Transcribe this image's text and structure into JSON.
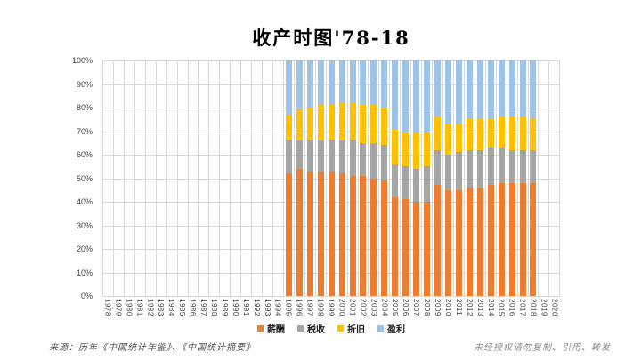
{
  "footer": {
    "source": "来源：历年《中国统计年鉴》、《中国统计摘要》",
    "notice": "未经授权请勿复制、引用、转发"
  },
  "chart_data": {
    "type": "bar",
    "subtype": "100-percent-stacked-column",
    "title": "收产时图'78-18",
    "categories": [
      "1978",
      "1979",
      "1980",
      "1981",
      "1982",
      "1983",
      "1984",
      "1985",
      "1986",
      "1987",
      "1988",
      "1989",
      "1990",
      "1991",
      "1992",
      "1993",
      "1994",
      "1995",
      "1996",
      "1997",
      "1998",
      "1999",
      "2000",
      "2001",
      "2002",
      "2003",
      "2004",
      "2005",
      "2006",
      "2007",
      "2008",
      "2009",
      "2010",
      "2011",
      "2012",
      "2013",
      "2014",
      "2015",
      "2016",
      "2017",
      "2018",
      "2019",
      "2020"
    ],
    "series": [
      {
        "name": "薪酬",
        "color": "#ED7D31",
        "values": [
          null,
          null,
          null,
          null,
          null,
          null,
          null,
          null,
          null,
          null,
          null,
          null,
          null,
          null,
          null,
          null,
          null,
          52,
          54,
          53,
          53,
          53,
          52,
          51,
          51,
          50,
          49,
          42,
          41,
          40,
          40,
          47,
          45,
          45,
          46,
          46,
          47,
          48,
          48,
          48,
          48,
          null,
          null
        ]
      },
      {
        "name": "税收",
        "color": "#A5A5A5",
        "values": [
          null,
          null,
          null,
          null,
          null,
          null,
          null,
          null,
          null,
          null,
          null,
          null,
          null,
          null,
          null,
          null,
          null,
          14,
          12,
          13,
          13,
          13,
          14,
          15,
          14,
          15,
          15,
          14,
          14,
          14,
          15,
          15,
          15,
          16,
          16,
          16,
          16,
          15,
          14,
          14,
          14,
          null,
          null
        ]
      },
      {
        "name": "折旧",
        "color": "#FFC000",
        "values": [
          null,
          null,
          null,
          null,
          null,
          null,
          null,
          null,
          null,
          null,
          null,
          null,
          null,
          null,
          null,
          null,
          null,
          11,
          13,
          14,
          15,
          15,
          16,
          16,
          16,
          16,
          16,
          15,
          14,
          15,
          14,
          14,
          13,
          12,
          13,
          13,
          12,
          13,
          14,
          14,
          13,
          null,
          null
        ]
      },
      {
        "name": "盈利",
        "color": "#9DC3E6",
        "values": [
          null,
          null,
          null,
          null,
          null,
          null,
          null,
          null,
          null,
          null,
          null,
          null,
          null,
          null,
          null,
          null,
          null,
          23,
          21,
          20,
          19,
          19,
          18,
          18,
          19,
          19,
          20,
          29,
          31,
          31,
          31,
          24,
          27,
          27,
          25,
          25,
          25,
          24,
          24,
          24,
          25,
          null,
          null
        ]
      }
    ],
    "y_ticks": [
      "100%",
      "90%",
      "80%",
      "70%",
      "60%",
      "50%",
      "40%",
      "30%",
      "20%",
      "10%",
      "0%"
    ],
    "ylim": [
      0,
      100
    ],
    "grid": true,
    "gridline_color": "#D9D9D9",
    "legend_position": "bottom"
  }
}
